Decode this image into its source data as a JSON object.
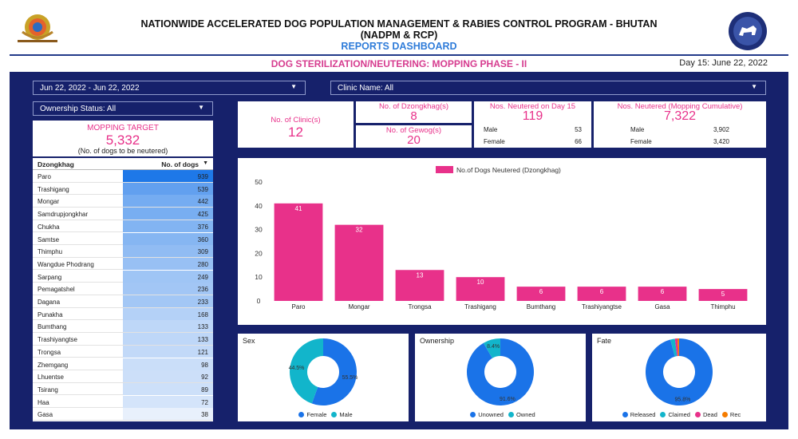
{
  "header": {
    "title_line1": "NATIONWIDE ACCELERATED DOG POPULATION MANAGEMENT & RABIES CONTROL PROGRAM - BHUTAN",
    "title_line2": "(NADPM & RCP)",
    "title_line3": "REPORTS DASHBOARD",
    "left_logo": "bhutan-emblem-icon",
    "right_logo": "dog-program-seal-icon"
  },
  "subheader": {
    "title": "DOG STERILIZATION/NEUTERING: MOPPING PHASE - II",
    "day_info": "Day 15: June 22, 2022"
  },
  "filters": {
    "date_range": "Jun 22, 2022 - Jun 22, 2022",
    "clinic": "Clinic Name: All",
    "ownership": "Ownership Status: All"
  },
  "mopping_target": {
    "label": "MOPPING TARGET",
    "value": "5,332",
    "note": "(No. of dogs to be neutered)"
  },
  "kpis": {
    "clinics": {
      "label": "No. of Clinic(s)",
      "value": "12"
    },
    "dzongkhags": {
      "label": "No. of Dzongkhag(s)",
      "value": "8"
    },
    "gewogs": {
      "label": "No. of Gewog(s)",
      "value": "20"
    },
    "day15": {
      "label": "Nos. Neutered on Day 15",
      "value": "119",
      "male_label": "Male",
      "male": "53",
      "female_label": "Female",
      "female": "66"
    },
    "cumulative": {
      "label": "Nos. Neutered (Mopping Cumulative)",
      "value": "7,322",
      "male_label": "Male",
      "male": "3,902",
      "female_label": "Female",
      "female": "3,420"
    }
  },
  "dzongkhag_table": {
    "col1": "Dzongkhag",
    "col2": "No. of dogs",
    "sort_icon": "sort-down-icon",
    "rows": [
      {
        "name": "Paro",
        "value": 939
      },
      {
        "name": "Trashigang",
        "value": 539
      },
      {
        "name": "Mongar",
        "value": 442
      },
      {
        "name": "Samdrupjongkhar",
        "value": 425
      },
      {
        "name": "Chukha",
        "value": 376
      },
      {
        "name": "Samtse",
        "value": 360
      },
      {
        "name": "Thimphu",
        "value": 309
      },
      {
        "name": "Wangdue Phodrang",
        "value": 280
      },
      {
        "name": "Sarpang",
        "value": 249
      },
      {
        "name": "Pemagatshel",
        "value": 236
      },
      {
        "name": "Dagana",
        "value": 233
      },
      {
        "name": "Punakha",
        "value": 168
      },
      {
        "name": "Bumthang",
        "value": 133
      },
      {
        "name": "Trashiyangtse",
        "value": 133
      },
      {
        "name": "Trongsa",
        "value": 121
      },
      {
        "name": "Zhemgang",
        "value": 98
      },
      {
        "name": "Lhuentse",
        "value": 92
      },
      {
        "name": "Tsirang",
        "value": 89
      },
      {
        "name": "Haa",
        "value": 72
      },
      {
        "name": "Gasa",
        "value": 38
      }
    ]
  },
  "colors": {
    "navy": "#16216b",
    "pink": "#e8318a",
    "blue": "#1a73e8",
    "teal": "#12b5cb",
    "orange": "#f57c00"
  },
  "chart_data": [
    {
      "type": "bar",
      "legend": "No.of Dogs Neutered (Dzongkhag)",
      "categories": [
        "Paro",
        "Mongar",
        "Trongsa",
        "Trashigang",
        "Bumthang",
        "Trashiyangtse",
        "Gasa",
        "Thimphu"
      ],
      "values": [
        41,
        32,
        13,
        10,
        6,
        6,
        6,
        5
      ],
      "ylim": [
        0,
        50
      ],
      "yticks": [
        "0",
        "10",
        "20",
        "30",
        "40",
        "50"
      ],
      "grid": false,
      "legend_position": "top"
    },
    {
      "type": "pie",
      "title": "Sex",
      "labels": [
        "Female",
        "Male"
      ],
      "values": [
        55.5,
        44.5
      ],
      "value_labels": [
        "55.5%",
        "44.5%"
      ],
      "colors": [
        "#1a73e8",
        "#12b5cb"
      ],
      "legend_position": "bottom"
    },
    {
      "type": "pie",
      "title": "Ownership",
      "labels": [
        "Unowned",
        "Owned"
      ],
      "values": [
        91.6,
        8.4
      ],
      "value_labels": [
        "91.6%",
        "8.4%"
      ],
      "colors": [
        "#1a73e8",
        "#12b5cb"
      ],
      "legend_position": "bottom"
    },
    {
      "type": "pie",
      "title": "Fate",
      "labels": [
        "Released",
        "Claimed",
        "Dead",
        "Rec"
      ],
      "values": [
        95.8,
        2.2,
        1.2,
        0.8
      ],
      "value_labels": [
        "95.8%",
        "",
        "",
        ""
      ],
      "colors": [
        "#1a73e8",
        "#12b5cb",
        "#e8318a",
        "#f57c00"
      ],
      "legend_position": "bottom"
    }
  ]
}
